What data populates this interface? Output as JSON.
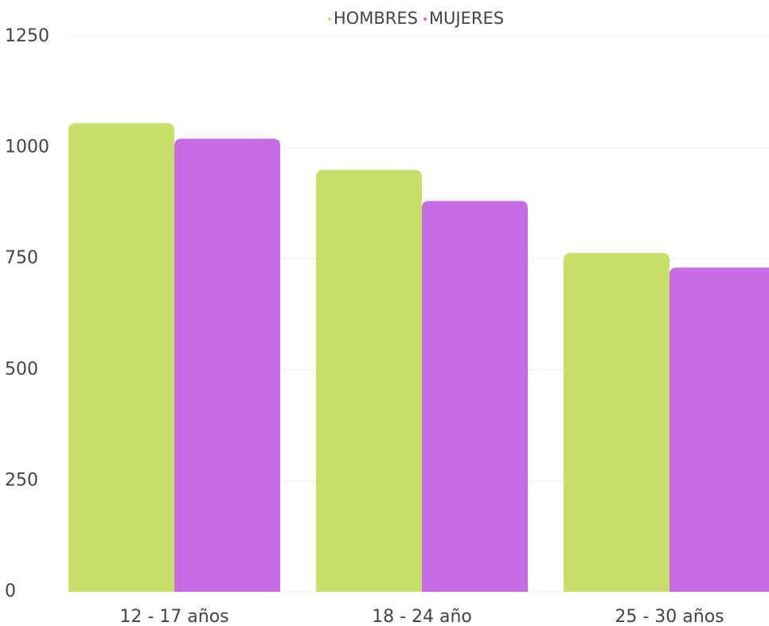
{
  "chart_data": {
    "type": "bar",
    "categories": [
      "12 - 17 años",
      "18 - 24 año",
      "25 - 30 años"
    ],
    "series": [
      {
        "name": "HOMBRES",
        "color": "#c8e06a",
        "values": [
          1055,
          950,
          763
        ]
      },
      {
        "name": "MUJERES",
        "color": "#c86be6",
        "values": [
          1020,
          880,
          730
        ]
      }
    ],
    "ylim": [
      0,
      1250
    ],
    "yticks": [
      0,
      250,
      500,
      750,
      1000,
      1250
    ],
    "grid": true,
    "legend": "top"
  }
}
